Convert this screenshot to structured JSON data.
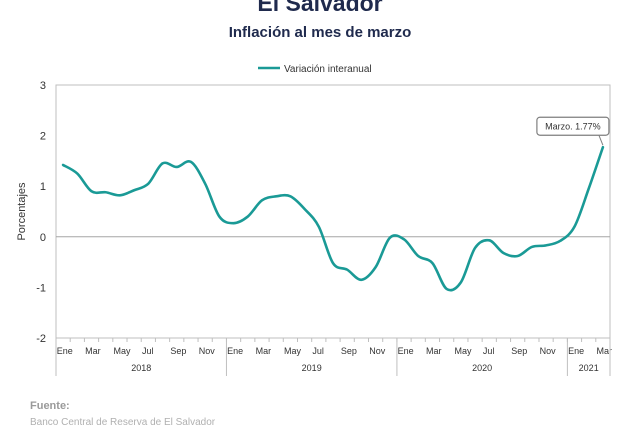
{
  "header": {
    "title": "El Salvador",
    "subtitle": "Inflación al mes de marzo"
  },
  "footer": {
    "source_label": "Fuente:",
    "source_text": "Banco Central de Reserva de El Salvador"
  },
  "chart_data": {
    "type": "line",
    "title": "El Salvador",
    "subtitle": "Inflación al mes de marzo",
    "ylabel": "Porcentajes",
    "xlabel": "",
    "ylim": [
      -2,
      3
    ],
    "yticks": [
      -2,
      -1,
      0,
      1,
      2,
      3
    ],
    "grid": false,
    "zero_line": true,
    "legend_position": "top-center",
    "line_color": "#1a9a96",
    "x": [
      "2018-01",
      "2018-02",
      "2018-03",
      "2018-04",
      "2018-05",
      "2018-06",
      "2018-07",
      "2018-08",
      "2018-09",
      "2018-10",
      "2018-11",
      "2018-12",
      "2019-01",
      "2019-02",
      "2019-03",
      "2019-04",
      "2019-05",
      "2019-06",
      "2019-07",
      "2019-08",
      "2019-09",
      "2019-10",
      "2019-11",
      "2019-12",
      "2020-01",
      "2020-02",
      "2020-03",
      "2020-04",
      "2020-05",
      "2020-06",
      "2020-07",
      "2020-08",
      "2020-09",
      "2020-10",
      "2020-11",
      "2020-12",
      "2021-01",
      "2021-02",
      "2021-03"
    ],
    "month_labels": [
      "Ene",
      "Mar",
      "May",
      "Jul",
      "Sep",
      "Nov",
      "Ene",
      "Mar",
      "May",
      "Jul",
      "Sep",
      "Nov",
      "Ene",
      "Mar",
      "May",
      "Jul",
      "Sep",
      "Nov",
      "Ene",
      "Mar"
    ],
    "year_labels": [
      "2018",
      "2019",
      "2020",
      "2021"
    ],
    "series": [
      {
        "name": "Variación interanual",
        "values": [
          1.42,
          1.25,
          0.9,
          0.88,
          0.82,
          0.92,
          1.05,
          1.45,
          1.38,
          1.48,
          1.05,
          0.4,
          0.27,
          0.4,
          0.72,
          0.8,
          0.8,
          0.55,
          0.2,
          -0.52,
          -0.65,
          -0.85,
          -0.6,
          -0.02,
          -0.05,
          -0.38,
          -0.52,
          -1.03,
          -0.9,
          -0.22,
          -0.07,
          -0.32,
          -0.38,
          -0.2,
          -0.17,
          -0.08,
          0.2,
          0.95,
          1.77
        ]
      }
    ],
    "annotations": [
      {
        "text": "Marzo. 1.77%",
        "x": "2021-03",
        "y": 1.77
      }
    ]
  }
}
